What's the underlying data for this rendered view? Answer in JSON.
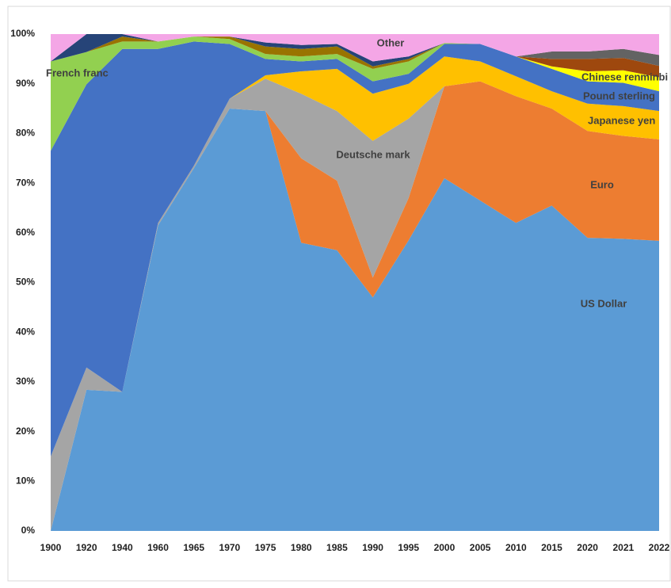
{
  "chart_data": {
    "type": "stacked_area",
    "categories": [
      "1900",
      "1920",
      "1940",
      "1960",
      "1965",
      "1970",
      "1975",
      "1980",
      "1985",
      "1990",
      "1995",
      "2000",
      "2005",
      "2010",
      "2015",
      "2020",
      "2021",
      "2022"
    ],
    "ylim": [
      0,
      100
    ],
    "yticks": [
      {
        "value": 0,
        "label": "0%"
      },
      {
        "value": 10,
        "label": "10%"
      },
      {
        "value": 20,
        "label": "20%"
      },
      {
        "value": 30,
        "label": "30%"
      },
      {
        "value": 40,
        "label": "40%"
      },
      {
        "value": 50,
        "label": "50%"
      },
      {
        "value": 60,
        "label": "60%"
      },
      {
        "value": 70,
        "label": "70%"
      },
      {
        "value": 80,
        "label": "80%"
      },
      {
        "value": 90,
        "label": "90%"
      },
      {
        "value": 100,
        "label": "100%"
      }
    ],
    "grid": false,
    "series": [
      {
        "name": "US  Dollar",
        "color": "#5b9bd5",
        "values": [
          0,
          28.4,
          28,
          61.5,
          73,
          85,
          84.5,
          58,
          56.5,
          47,
          58.5,
          71,
          66.5,
          62,
          65.5,
          59,
          58.8,
          58.4
        ]
      },
      {
        "name": "Euro",
        "color": "#ed7d31",
        "values": [
          0,
          0,
          0,
          0,
          0,
          0,
          0,
          17,
          14,
          4,
          8.5,
          18.5,
          24,
          25.5,
          19.5,
          21.5,
          20.7,
          20.4
        ]
      },
      {
        "name": "Deutsche mark",
        "color": "#a5a5a5",
        "values": [
          15,
          4.5,
          0,
          0.5,
          0.5,
          2,
          6.5,
          13,
          14,
          27.5,
          16,
          0,
          0,
          0,
          0,
          0,
          0,
          0
        ]
      },
      {
        "name": "Japanese yen",
        "color": "#ffc000",
        "values": [
          0,
          0,
          0,
          0,
          0,
          0,
          0.7,
          4.5,
          8.5,
          9.5,
          7,
          6,
          4,
          4,
          3.5,
          5.5,
          6,
          5.7
        ]
      },
      {
        "name": "Pound sterling",
        "color": "#4472c4",
        "values": [
          61.5,
          57,
          69,
          35,
          25,
          11,
          3.3,
          2,
          2,
          2.5,
          2,
          2.5,
          3.5,
          4,
          4.5,
          4.5,
          4.7,
          4
        ]
      },
      {
        "name": "Chinese renminbi",
        "color": "#ffff00",
        "values": [
          0,
          0,
          0,
          0,
          0,
          0,
          0,
          0,
          0,
          0,
          0,
          0,
          0,
          0,
          0.5,
          2,
          2.5,
          2.8
        ]
      },
      {
        "name": "French franc",
        "color": "#92d050",
        "values": [
          18,
          6.5,
          1.5,
          1.5,
          1,
          1,
          1,
          1,
          1,
          2.5,
          2.5,
          0.2,
          0,
          0,
          0,
          0,
          0,
          0
        ]
      },
      {
        "color": "#997300",
        "values": [
          0,
          0,
          1,
          0,
          0,
          0.5,
          1.5,
          1.5,
          1.5,
          0.5,
          0.5,
          0,
          0,
          0,
          0,
          0,
          0,
          0
        ]
      },
      {
        "color": "#264478",
        "values": [
          0,
          3.6,
          0.5,
          0,
          0,
          0,
          0.8,
          0.8,
          0.5,
          1,
          0.5,
          0,
          0,
          0,
          0,
          0,
          0,
          0
        ]
      },
      {
        "color": "#9e480e",
        "values": [
          0,
          0,
          0,
          0,
          0,
          0,
          0,
          0,
          0,
          0,
          0,
          0,
          0,
          0,
          1.5,
          2.5,
          2.5,
          2.3
        ]
      },
      {
        "color": "#636363",
        "values": [
          0,
          0,
          0,
          0,
          0,
          0,
          0,
          0,
          0,
          0,
          0,
          0,
          0,
          0,
          1.5,
          1.5,
          1.8,
          2.2
        ]
      },
      {
        "name": "Other",
        "color": "#f4a6e6",
        "values": [
          5.5,
          0,
          0,
          1.5,
          0.5,
          0.5,
          1.7,
          2.2,
          2,
          5.5,
          4.5,
          1.8,
          2,
          4.5,
          3.5,
          3.5,
          3,
          4.2
        ]
      }
    ]
  }
}
